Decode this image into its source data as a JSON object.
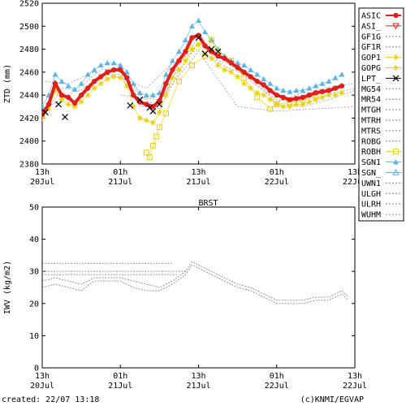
{
  "footer": {
    "created": "created: 22/07 13:18",
    "credit": "(c)KNMI/EGVAP"
  },
  "chart_data": [
    {
      "type": "scatter",
      "title": "",
      "ylabel": "ZTD (mm)",
      "ylim": [
        2380,
        2520
      ],
      "yticks": [
        2380,
        2400,
        2420,
        2440,
        2460,
        2480,
        2500,
        2520
      ],
      "xlim_hours": [
        0,
        48
      ],
      "xticks": [
        {
          "h": 0,
          "line1": "13h",
          "line2": "20Jul"
        },
        {
          "h": 12,
          "line1": "01h",
          "line2": "21Jul"
        },
        {
          "h": 24,
          "line1": "13h",
          "line2": "21Jul"
        },
        {
          "h": 36,
          "line1": "01h",
          "line2": "22Jul"
        },
        {
          "h": 48,
          "line1": "13h",
          "line2": "22Jul"
        }
      ],
      "legend_placement": "right",
      "legend": [
        {
          "name": "ASIC",
          "color": "#e0201c",
          "style": "line-dot"
        },
        {
          "name": "ASI_",
          "color": "#e0201c",
          "style": "tri-down"
        },
        {
          "name": "GF1G",
          "color": "#888888",
          "style": "dash"
        },
        {
          "name": "GF1R",
          "color": "#888888",
          "style": "dash"
        },
        {
          "name": "GOP1",
          "color": "#e8d000",
          "style": "star"
        },
        {
          "name": "GOPG",
          "color": "#e8d000",
          "style": "star"
        },
        {
          "name": "LPT_",
          "color": "#000000",
          "style": "x"
        },
        {
          "name": "MG54",
          "color": "#888888",
          "style": "dash"
        },
        {
          "name": "MR54",
          "color": "#888888",
          "style": "dash"
        },
        {
          "name": "MTGH",
          "color": "#888888",
          "style": "dash"
        },
        {
          "name": "MTRH",
          "color": "#888888",
          "style": "dash"
        },
        {
          "name": "MTRS",
          "color": "#888888",
          "style": "dash"
        },
        {
          "name": "ROBG",
          "color": "#888888",
          "style": "dash"
        },
        {
          "name": "ROBH",
          "color": "#e8d000",
          "style": "square"
        },
        {
          "name": "SGN1",
          "color": "#5ab4e6",
          "style": "tri-up-filled"
        },
        {
          "name": "SGN_",
          "color": "#5ab4e6",
          "style": "tri-up"
        },
        {
          "name": "UWN1",
          "color": "#888888",
          "style": "dash"
        },
        {
          "name": "ULGH",
          "color": "#888888",
          "style": "dash"
        },
        {
          "name": "ULRH",
          "color": "#888888",
          "style": "dash"
        },
        {
          "name": "WUHM",
          "color": "#888888",
          "style": "dash"
        }
      ],
      "series": [
        {
          "name": "ASIC",
          "color": "#e0201c",
          "x": [
            0,
            1,
            2,
            3,
            4,
            5,
            6,
            7,
            8,
            9,
            10,
            11,
            12,
            13,
            14,
            15,
            16,
            17,
            18,
            19,
            20,
            21,
            22,
            23,
            24,
            25,
            26,
            27,
            28,
            29,
            30,
            31,
            32,
            33,
            34,
            35,
            36,
            37,
            38,
            39,
            40,
            41,
            42,
            43,
            44,
            45,
            46
          ],
          "y": [
            2423,
            2432,
            2450,
            2440,
            2438,
            2433,
            2440,
            2446,
            2452,
            2456,
            2460,
            2462,
            2462,
            2455,
            2440,
            2434,
            2432,
            2430,
            2435,
            2450,
            2462,
            2470,
            2478,
            2490,
            2492,
            2483,
            2478,
            2474,
            2472,
            2468,
            2464,
            2460,
            2456,
            2452,
            2449,
            2444,
            2440,
            2438,
            2436,
            2437,
            2438,
            2440,
            2442,
            2443,
            2444,
            2446,
            2448
          ]
        },
        {
          "name": "SGN1",
          "color": "#5ab4e6",
          "x": [
            0,
            1,
            2,
            3,
            4,
            5,
            6,
            7,
            8,
            9,
            10,
            11,
            12,
            13,
            14,
            15,
            16,
            17,
            18,
            19,
            20,
            21,
            22,
            23,
            24,
            25,
            26,
            27,
            28,
            29,
            30,
            31,
            32,
            33,
            34,
            35,
            36,
            37,
            38,
            39,
            40,
            41,
            42,
            43,
            44,
            45,
            46
          ],
          "y": [
            2430,
            2440,
            2458,
            2452,
            2448,
            2445,
            2450,
            2458,
            2462,
            2466,
            2468,
            2468,
            2466,
            2460,
            2450,
            2442,
            2440,
            2440,
            2442,
            2458,
            2470,
            2478,
            2488,
            2500,
            2505,
            2495,
            2488,
            2480,
            2474,
            2470,
            2468,
            2466,
            2462,
            2458,
            2454,
            2450,
            2446,
            2444,
            2443,
            2444,
            2444,
            2446,
            2448,
            2450,
            2452,
            2455,
            2458
          ]
        },
        {
          "name": "GOP1",
          "color": "#e8d000",
          "x": [
            0,
            1,
            2,
            3,
            4,
            5,
            6,
            7,
            8,
            9,
            10,
            11,
            12,
            13,
            14,
            15,
            16,
            17,
            18,
            19,
            20,
            21,
            22,
            23,
            24,
            25,
            26,
            27,
            28,
            29,
            30,
            31,
            32,
            33,
            34,
            35,
            36,
            37,
            38,
            39,
            40,
            41,
            42,
            43,
            44,
            45,
            46
          ],
          "y": [
            2420,
            2428,
            2444,
            2436,
            2432,
            2430,
            2434,
            2440,
            2446,
            2450,
            2454,
            2456,
            2455,
            2448,
            2430,
            2420,
            2418,
            2416,
            2425,
            2440,
            2455,
            2462,
            2470,
            2480,
            2484,
            2476,
            2472,
            2466,
            2462,
            2460,
            2456,
            2450,
            2446,
            2442,
            2440,
            2436,
            2432,
            2430,
            2430,
            2432,
            2432,
            2434,
            2436,
            2438,
            2440,
            2440,
            2442
          ]
        },
        {
          "name": "ROBH",
          "color": "#e8d000",
          "x": [
            16,
            16.5,
            17,
            17.5,
            18,
            19,
            21,
            23,
            25,
            26,
            27,
            29,
            31,
            33,
            35,
            36,
            38,
            40,
            42
          ],
          "y": [
            2390,
            2386,
            2396,
            2404,
            2412,
            2424,
            2452,
            2466,
            2474,
            2488,
            2478,
            2470,
            2455,
            2438,
            2428,
            2432,
            2434,
            2436,
            2440
          ]
        },
        {
          "name": "LPT_",
          "color": "#000000",
          "x": [
            0.5,
            2.5,
            3.5,
            13.5,
            15,
            16.5,
            17,
            18,
            24,
            25,
            26,
            27
          ],
          "y": [
            2425,
            2432,
            2421,
            2431,
            2436,
            2429,
            2426,
            2432,
            2490,
            2476,
            2480,
            2478
          ]
        }
      ],
      "grey_series": [
        {
          "x": [
            0,
            3,
            6,
            9,
            12,
            15,
            18,
            21,
            24,
            27,
            30,
            33,
            36,
            39,
            42,
            45,
            48
          ],
          "y": [
            2420,
            2446,
            2444,
            2458,
            2458,
            2430,
            2432,
            2466,
            2490,
            2474,
            2462,
            2448,
            2436,
            2434,
            2438,
            2442,
            2446
          ]
        },
        {
          "x": [
            0,
            3,
            6,
            9,
            12,
            15,
            18,
            21,
            24,
            27,
            30,
            33,
            36,
            39,
            42,
            45,
            48
          ],
          "y": [
            2428,
            2436,
            2448,
            2462,
            2464,
            2440,
            2428,
            2460,
            2486,
            2470,
            2466,
            2452,
            2434,
            2440,
            2444,
            2448,
            2450
          ]
        },
        {
          "x": [
            0,
            4,
            8,
            12,
            16,
            20,
            24,
            28,
            32,
            36,
            40,
            44,
            48
          ],
          "y": [
            2452,
            2450,
            2460,
            2455,
            2446,
            2468,
            2480,
            2465,
            2456,
            2432,
            2430,
            2436,
            2444
          ]
        },
        {
          "x": [
            12,
            18,
            24,
            30,
            36,
            42,
            48
          ],
          "y": [
            2440,
            2436,
            2478,
            2430,
            2426,
            2428,
            2430
          ]
        }
      ]
    },
    {
      "type": "line",
      "title": "BRST",
      "ylabel": "IWV (kg/m2)",
      "ylim": [
        0,
        50
      ],
      "yticks": [
        0,
        10,
        20,
        30,
        40,
        50
      ],
      "xlim_hours": [
        0,
        48
      ],
      "xticks": [
        {
          "h": 0,
          "line1": "13h",
          "line2": "20Jul"
        },
        {
          "h": 12,
          "line1": "01h",
          "line2": "21Jul"
        },
        {
          "h": 24,
          "line1": "13h",
          "line2": "21Jul"
        },
        {
          "h": 36,
          "line1": "01h",
          "line2": "22Jul"
        },
        {
          "h": 48,
          "line1": "13h",
          "line2": "22Jul"
        }
      ],
      "series": [
        {
          "color": "#888888",
          "x": [
            0,
            2,
            4,
            6,
            8,
            10,
            12,
            14,
            16,
            18,
            20,
            22,
            23,
            24,
            26,
            28,
            30,
            32,
            34,
            36,
            38,
            40,
            42,
            44,
            46,
            47
          ],
          "y": [
            27,
            28,
            27,
            26,
            28,
            28,
            28,
            27,
            26,
            25,
            27,
            30,
            33,
            32,
            30,
            28,
            26,
            25,
            23,
            21,
            21,
            21,
            22,
            22,
            24,
            22
          ]
        },
        {
          "color": "#888888",
          "x": [
            0,
            2,
            4,
            6,
            8,
            10,
            12,
            14,
            16,
            18,
            20,
            22,
            23,
            24,
            26,
            28,
            30,
            32,
            34,
            36,
            38,
            40,
            42,
            44,
            46,
            47
          ],
          "y": [
            25,
            26,
            25,
            24,
            27,
            27,
            27,
            25,
            24,
            24,
            26,
            29,
            32,
            31,
            29,
            27,
            25,
            24,
            22,
            20,
            20,
            20,
            21,
            21,
            23,
            21
          ]
        },
        {
          "color": "#888888",
          "x": [
            0,
            19,
            20
          ],
          "y": [
            32.5,
            32.5,
            32.5
          ]
        },
        {
          "color": "#888888",
          "x": [
            0,
            21,
            22
          ],
          "y": [
            30,
            30,
            30
          ]
        },
        {
          "color": "#888888",
          "x": [
            0,
            20,
            21
          ],
          "y": [
            29,
            29,
            29
          ]
        }
      ]
    }
  ]
}
